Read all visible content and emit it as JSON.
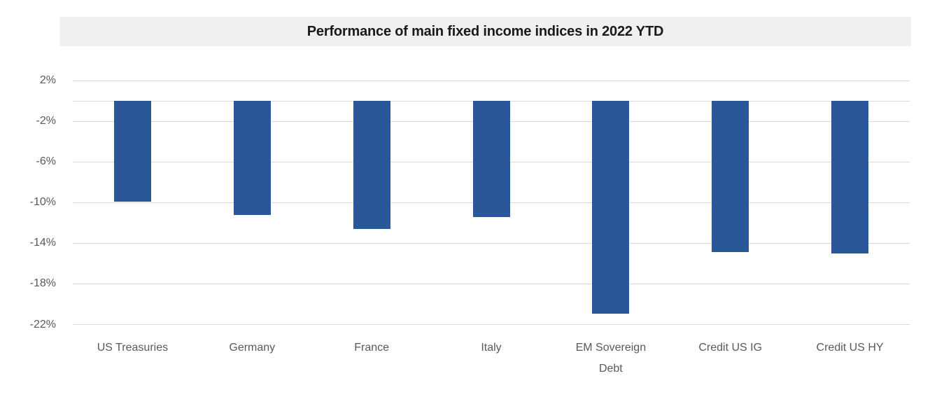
{
  "chart_data": {
    "type": "bar",
    "title": "Performance of main fixed income indices in 2022 YTD",
    "xlabel": "",
    "ylabel": "",
    "categories": [
      "US Treasuries",
      "Germany",
      "France",
      "Italy",
      "EM Sovereign Debt",
      "Credit US IG",
      "Credit US HY"
    ],
    "values": [
      -9.9,
      -11.2,
      -12.6,
      -11.4,
      -20.9,
      -14.9,
      -15.0
    ],
    "unit": "%",
    "ylim": [
      -22,
      2
    ],
    "yticks": [
      2,
      -2,
      -6,
      -10,
      -14,
      -18,
      -22
    ],
    "ytick_labels": [
      "2%",
      "-2%",
      "-6%",
      "-10%",
      "-14%",
      "-18%",
      "-22%"
    ],
    "grid": true,
    "legend": false,
    "baseline_value": 0,
    "bar_color": "#295798",
    "gridline_color": "#D9D9D9",
    "axis_label_color": "#595959",
    "title_color": "#1A1A1A",
    "title_bg_color": "#F0F0F0",
    "background_color": "#FFFFFF"
  }
}
